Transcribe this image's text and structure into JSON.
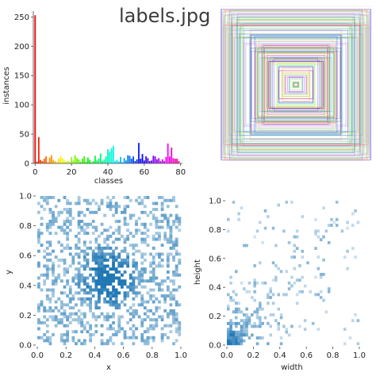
{
  "title": "labels.jpg",
  "chart_data": [
    {
      "type": "bar",
      "xlabel": "classes",
      "ylabel": "instances",
      "xlim": [
        -1,
        81
      ],
      "ylim": [
        0,
        260
      ],
      "x_ticks": [
        0,
        20,
        40,
        60,
        80
      ],
      "y_ticks": [
        0,
        50,
        100,
        150,
        200,
        250
      ],
      "categories": [
        0,
        1,
        2,
        3,
        4,
        5,
        6,
        7,
        8,
        9,
        10,
        11,
        12,
        13,
        14,
        15,
        16,
        17,
        18,
        19,
        20,
        21,
        22,
        23,
        24,
        25,
        26,
        27,
        28,
        29,
        30,
        31,
        32,
        33,
        34,
        35,
        36,
        37,
        38,
        39,
        40,
        41,
        42,
        43,
        44,
        45,
        46,
        47,
        48,
        49,
        50,
        51,
        52,
        53,
        54,
        55,
        56,
        57,
        58,
        59,
        60,
        61,
        62,
        63,
        64,
        65,
        66,
        67,
        68,
        69,
        70,
        71,
        72,
        73,
        74,
        75,
        76,
        77,
        78,
        79
      ],
      "values": [
        253,
        3,
        45,
        6,
        4,
        8,
        12,
        2,
        10,
        14,
        6,
        4,
        2,
        8,
        12,
        9,
        5,
        3,
        4,
        2,
        11,
        5,
        14,
        9,
        7,
        3,
        8,
        12,
        3,
        10,
        6,
        2,
        4,
        13,
        5,
        8,
        17,
        4,
        7,
        12,
        24,
        20,
        26,
        30,
        4,
        6,
        3,
        11,
        2,
        9,
        5,
        14,
        13,
        8,
        12,
        4,
        7,
        35,
        8,
        16,
        5,
        12,
        9,
        4,
        5,
        13,
        12,
        7,
        9,
        4,
        7,
        4,
        11,
        34,
        12,
        27,
        9,
        8,
        8,
        4
      ],
      "colors_note": "one rainbow colour per class, class 0 red"
    },
    {
      "type": "scatter",
      "description_kind": "overlaid centered bounding boxes",
      "x_ticks": [],
      "y_ticks": []
    },
    {
      "type": "heatmap",
      "xlabel": "x",
      "ylabel": "y",
      "xlim": [
        0,
        1
      ],
      "ylim": [
        0,
        1
      ],
      "x_ticks": [
        "0.0",
        "0.2",
        "0.4",
        "0.6",
        "0.8",
        "1.0"
      ],
      "y_ticks": [
        "0.0",
        "0.2",
        "0.4",
        "0.6",
        "0.8",
        "1.0"
      ],
      "bins": 50,
      "color": "#1f77b4",
      "note": "2D histogram of box centres, roughly uniform with a denser patch near (0.5, 0.45)"
    },
    {
      "type": "heatmap",
      "xlabel": "width",
      "ylabel": "height",
      "xlim": [
        0,
        1
      ],
      "ylim": [
        0,
        1
      ],
      "x_ticks": [
        "0.0",
        "0.2",
        "0.4",
        "0.6",
        "0.8",
        "1.0"
      ],
      "y_ticks": [
        "0.0",
        "0.2",
        "0.4",
        "0.6",
        "0.8",
        "1.0"
      ],
      "bins": 50,
      "color": "#1f77b4",
      "note": "2D histogram of box sizes, dense near origin, spreading along the diagonal"
    }
  ]
}
